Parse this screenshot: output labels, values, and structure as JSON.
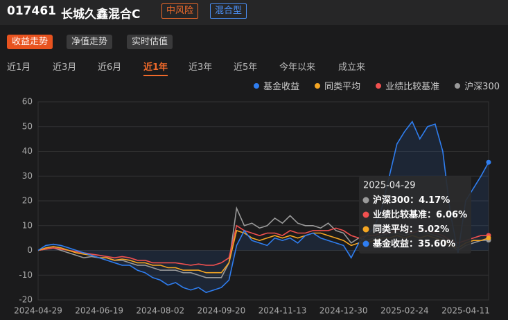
{
  "header": {
    "code": "017461",
    "name": "长城久鑫混合C",
    "tags": [
      "中风险",
      "混合型"
    ]
  },
  "tabs": [
    "收益走势",
    "净值走势",
    "实时估值"
  ],
  "active_tab": 0,
  "periods": [
    "近1月",
    "近3月",
    "近6月",
    "近1年",
    "近3年",
    "近5年",
    "今年以来",
    "成立来"
  ],
  "active_period": 3,
  "chart_data": {
    "type": "line",
    "legend": "top-right",
    "grid": true,
    "categories": [
      "2024-04-29",
      null,
      null,
      null,
      null,
      null,
      null,
      null,
      "2024-06-19",
      null,
      null,
      null,
      null,
      null,
      null,
      null,
      "2024-08-02",
      null,
      null,
      null,
      null,
      null,
      null,
      null,
      "2024-09-20",
      null,
      null,
      null,
      null,
      null,
      null,
      null,
      "2024-11-13",
      null,
      null,
      null,
      null,
      null,
      null,
      null,
      "2024-12-30",
      null,
      null,
      null,
      null,
      null,
      null,
      null,
      "2025-02-24",
      null,
      null,
      null,
      null,
      null,
      null,
      null,
      "2025-04-11",
      null,
      null,
      null
    ],
    "ylim": [
      -20,
      60
    ],
    "yticks": [
      -20,
      -10,
      0,
      10,
      20,
      30,
      40,
      50,
      60
    ],
    "series": [
      {
        "name": "基金收益",
        "color": "#2f7ef0",
        "values": [
          0,
          2,
          2.5,
          2,
          1,
          0,
          -1,
          -2,
          -3,
          -4,
          -5,
          -6,
          -6,
          -8,
          -9,
          -11,
          -12,
          -14,
          -13,
          -15,
          -16,
          -15,
          -17,
          -16,
          -15,
          -12,
          2,
          8,
          4,
          3,
          2,
          5,
          4,
          5,
          3,
          6,
          7,
          5,
          4,
          3,
          2,
          -3,
          3,
          6,
          9,
          17,
          30,
          43,
          48,
          52,
          45,
          50,
          51,
          40,
          15,
          -1,
          20,
          25,
          30,
          35.6
        ]
      },
      {
        "name": "同类平均",
        "color": "#f5a623",
        "values": [
          0,
          1,
          1.5,
          1,
          0,
          -1,
          -1.5,
          -2,
          -3,
          -3,
          -4,
          -3.5,
          -4,
          -5,
          -5,
          -6,
          -6,
          -7,
          -7,
          -8,
          -8,
          -8,
          -9,
          -9,
          -9,
          -5,
          8,
          7,
          5,
          4,
          5,
          6,
          5,
          6,
          5,
          6,
          7,
          7,
          6,
          5,
          4,
          2,
          3,
          3,
          4,
          5,
          5,
          6,
          5,
          6,
          5,
          6,
          5,
          4,
          2,
          1,
          3,
          4,
          4,
          5.02
        ]
      },
      {
        "name": "业绩比较基准",
        "color": "#f0504f",
        "values": [
          0,
          0.5,
          1,
          0.5,
          0,
          -0.5,
          -1,
          -1.5,
          -2,
          -2.5,
          -3,
          -2.5,
          -3,
          -4,
          -4,
          -5,
          -5,
          -5,
          -5,
          -5.5,
          -6,
          -5.5,
          -6,
          -6,
          -5,
          -3,
          10,
          8,
          7,
          6,
          7,
          7,
          6,
          8,
          7,
          7,
          8,
          8,
          8,
          9,
          8,
          6,
          5,
          6,
          6,
          7,
          7,
          8,
          8,
          7,
          8,
          8,
          7,
          6,
          4,
          3,
          4,
          5,
          6,
          6.06
        ]
      },
      {
        "name": "沪深300",
        "color": "#9a9a9a",
        "values": [
          0,
          0.5,
          1,
          0,
          -1,
          -2,
          -3,
          -2.5,
          -3,
          -3,
          -4,
          -4,
          -5,
          -6,
          -6,
          -7,
          -8,
          -8,
          -8,
          -9,
          -9,
          -10,
          -11,
          -11,
          -11,
          -5,
          17,
          10,
          11,
          9,
          10,
          13,
          11,
          14,
          11,
          10,
          10,
          9,
          11,
          8,
          7,
          3,
          5,
          4,
          5,
          6,
          7,
          7,
          6,
          7,
          8,
          7,
          6,
          5,
          2,
          0,
          2,
          3,
          4,
          4.17
        ]
      }
    ],
    "tooltip": {
      "title": "2025-04-29",
      "separator": "：",
      "value_labels": [
        "35.60%",
        "5.02%",
        "6.06%",
        "4.17%"
      ]
    }
  }
}
